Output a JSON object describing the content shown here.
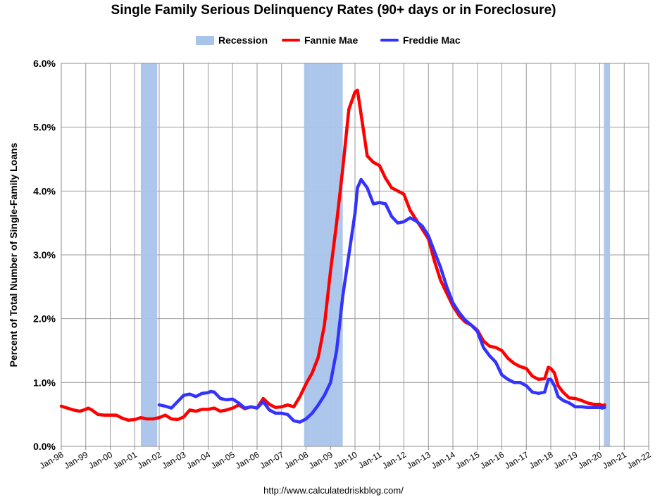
{
  "chart_data": {
    "type": "line",
    "title": "Single Family Serious Delinquency Rates (90+ days or in Foreclosure)",
    "ylabel": "Percent of Total Number of Single-Family Loans",
    "xlabel": "",
    "source": "http://www.calculatedriskblog.com/",
    "ylim": [
      0,
      6
    ],
    "xlim": [
      1998,
      2022
    ],
    "y_ticks": [
      0,
      1,
      2,
      3,
      4,
      5,
      6
    ],
    "y_tick_labels": [
      "0.0%",
      "1.0%",
      "2.0%",
      "3.0%",
      "4.0%",
      "5.0%",
      "6.0%"
    ],
    "x_ticks": [
      1998,
      1999,
      2000,
      2001,
      2002,
      2003,
      2004,
      2005,
      2006,
      2007,
      2008,
      2009,
      2010,
      2011,
      2012,
      2013,
      2014,
      2015,
      2016,
      2017,
      2018,
      2019,
      2020,
      2021,
      2022
    ],
    "x_tick_labels": [
      "Jan-98",
      "Jan-99",
      "Jan-00",
      "Jan-01",
      "Jan-02",
      "Jan-03",
      "Jan-04",
      "Jan-05",
      "Jan-06",
      "Jan-07",
      "Jan-08",
      "Jan-09",
      "Jan-10",
      "Jan-11",
      "Jan-12",
      "Jan-13",
      "Jan-14",
      "Jan-15",
      "Jan-16",
      "Jan-17",
      "Jan-18",
      "Jan-19",
      "Jan-20",
      "Jan-21",
      "Jan-22"
    ],
    "grid": true,
    "legend": [
      {
        "name": "Recession",
        "color": "#a9c4eb",
        "kind": "box"
      },
      {
        "name": "Fannie Mae",
        "color": "#ff0000",
        "kind": "line"
      },
      {
        "name": "Freddie Mac",
        "color": "#3333ff",
        "kind": "line"
      }
    ],
    "recessions": [
      [
        2001.25,
        2001.92
      ],
      [
        2007.92,
        2009.5
      ],
      [
        2020.17,
        2020.42
      ]
    ],
    "series": [
      {
        "name": "Fannie Mae",
        "color": "#ff0000",
        "x": [
          1998.0,
          1998.25,
          1998.5,
          1998.75,
          1999.0,
          1999.1,
          1999.25,
          1999.5,
          1999.75,
          2000.0,
          2000.25,
          2000.5,
          2000.75,
          2001.0,
          2001.25,
          2001.5,
          2001.75,
          2002.0,
          2002.25,
          2002.5,
          2002.75,
          2003.0,
          2003.25,
          2003.5,
          2003.75,
          2004.0,
          2004.25,
          2004.5,
          2004.75,
          2005.0,
          2005.25,
          2005.5,
          2005.75,
          2006.0,
          2006.25,
          2006.5,
          2006.75,
          2007.0,
          2007.25,
          2007.5,
          2007.75,
          2008.0,
          2008.25,
          2008.5,
          2008.75,
          2009.0,
          2009.25,
          2009.5,
          2009.75,
          2010.0,
          2010.1,
          2010.25,
          2010.5,
          2010.75,
          2011.0,
          2011.25,
          2011.5,
          2011.75,
          2012.0,
          2012.25,
          2012.5,
          2012.75,
          2013.0,
          2013.25,
          2013.5,
          2013.75,
          2014.0,
          2014.25,
          2014.5,
          2014.75,
          2015.0,
          2015.25,
          2015.5,
          2015.75,
          2016.0,
          2016.25,
          2016.5,
          2016.75,
          2017.0,
          2017.25,
          2017.5,
          2017.75,
          2017.9,
          2018.0,
          2018.15,
          2018.3,
          2018.5,
          2018.75,
          2019.0,
          2019.25,
          2019.5,
          2019.75,
          2020.0,
          2020.1,
          2020.2
        ],
        "y": [
          0.63,
          0.6,
          0.57,
          0.55,
          0.58,
          0.6,
          0.57,
          0.5,
          0.49,
          0.49,
          0.49,
          0.44,
          0.41,
          0.42,
          0.45,
          0.43,
          0.43,
          0.45,
          0.49,
          0.43,
          0.42,
          0.46,
          0.57,
          0.55,
          0.58,
          0.58,
          0.6,
          0.55,
          0.57,
          0.6,
          0.65,
          0.59,
          0.62,
          0.6,
          0.75,
          0.66,
          0.61,
          0.62,
          0.65,
          0.62,
          0.78,
          0.98,
          1.15,
          1.4,
          1.9,
          2.75,
          3.5,
          4.35,
          5.28,
          5.55,
          5.58,
          5.2,
          4.55,
          4.45,
          4.4,
          4.2,
          4.05,
          4.0,
          3.95,
          3.7,
          3.55,
          3.4,
          3.25,
          2.9,
          2.6,
          2.4,
          2.2,
          2.05,
          1.95,
          1.9,
          1.82,
          1.65,
          1.57,
          1.55,
          1.5,
          1.38,
          1.3,
          1.25,
          1.22,
          1.1,
          1.05,
          1.06,
          1.24,
          1.22,
          1.15,
          0.95,
          0.85,
          0.76,
          0.75,
          0.72,
          0.68,
          0.66,
          0.66,
          0.64,
          0.65
        ]
      },
      {
        "name": "Freddie Mac",
        "color": "#3333ff",
        "x": [
          2002.0,
          2002.25,
          2002.5,
          2002.75,
          2003.0,
          2003.25,
          2003.5,
          2003.75,
          2004.0,
          2004.1,
          2004.25,
          2004.5,
          2004.75,
          2005.0,
          2005.25,
          2005.5,
          2005.75,
          2006.0,
          2006.25,
          2006.5,
          2006.75,
          2007.0,
          2007.25,
          2007.5,
          2007.75,
          2008.0,
          2008.25,
          2008.5,
          2008.75,
          2009.0,
          2009.25,
          2009.5,
          2009.75,
          2010.0,
          2010.1,
          2010.25,
          2010.5,
          2010.75,
          2011.0,
          2011.25,
          2011.5,
          2011.75,
          2012.0,
          2012.25,
          2012.5,
          2012.75,
          2013.0,
          2013.25,
          2013.5,
          2013.75,
          2014.0,
          2014.25,
          2014.5,
          2014.75,
          2015.0,
          2015.25,
          2015.5,
          2015.75,
          2016.0,
          2016.25,
          2016.5,
          2016.75,
          2017.0,
          2017.25,
          2017.5,
          2017.75,
          2017.9,
          2018.0,
          2018.15,
          2018.3,
          2018.5,
          2018.75,
          2019.0,
          2019.25,
          2019.5,
          2019.75,
          2020.0,
          2020.1,
          2020.2
        ],
        "y": [
          0.65,
          0.63,
          0.6,
          0.7,
          0.8,
          0.82,
          0.78,
          0.83,
          0.84,
          0.86,
          0.85,
          0.75,
          0.73,
          0.74,
          0.68,
          0.6,
          0.62,
          0.6,
          0.7,
          0.57,
          0.52,
          0.52,
          0.5,
          0.4,
          0.38,
          0.43,
          0.52,
          0.65,
          0.8,
          1.0,
          1.5,
          2.35,
          3.0,
          3.65,
          4.05,
          4.18,
          4.05,
          3.8,
          3.82,
          3.8,
          3.6,
          3.5,
          3.52,
          3.58,
          3.53,
          3.45,
          3.3,
          3.05,
          2.8,
          2.5,
          2.25,
          2.1,
          1.98,
          1.9,
          1.8,
          1.55,
          1.42,
          1.32,
          1.12,
          1.05,
          1.0,
          1.0,
          0.95,
          0.85,
          0.83,
          0.85,
          1.05,
          1.05,
          0.95,
          0.78,
          0.72,
          0.68,
          0.62,
          0.62,
          0.61,
          0.61,
          0.61,
          0.6,
          0.61
        ]
      }
    ]
  }
}
